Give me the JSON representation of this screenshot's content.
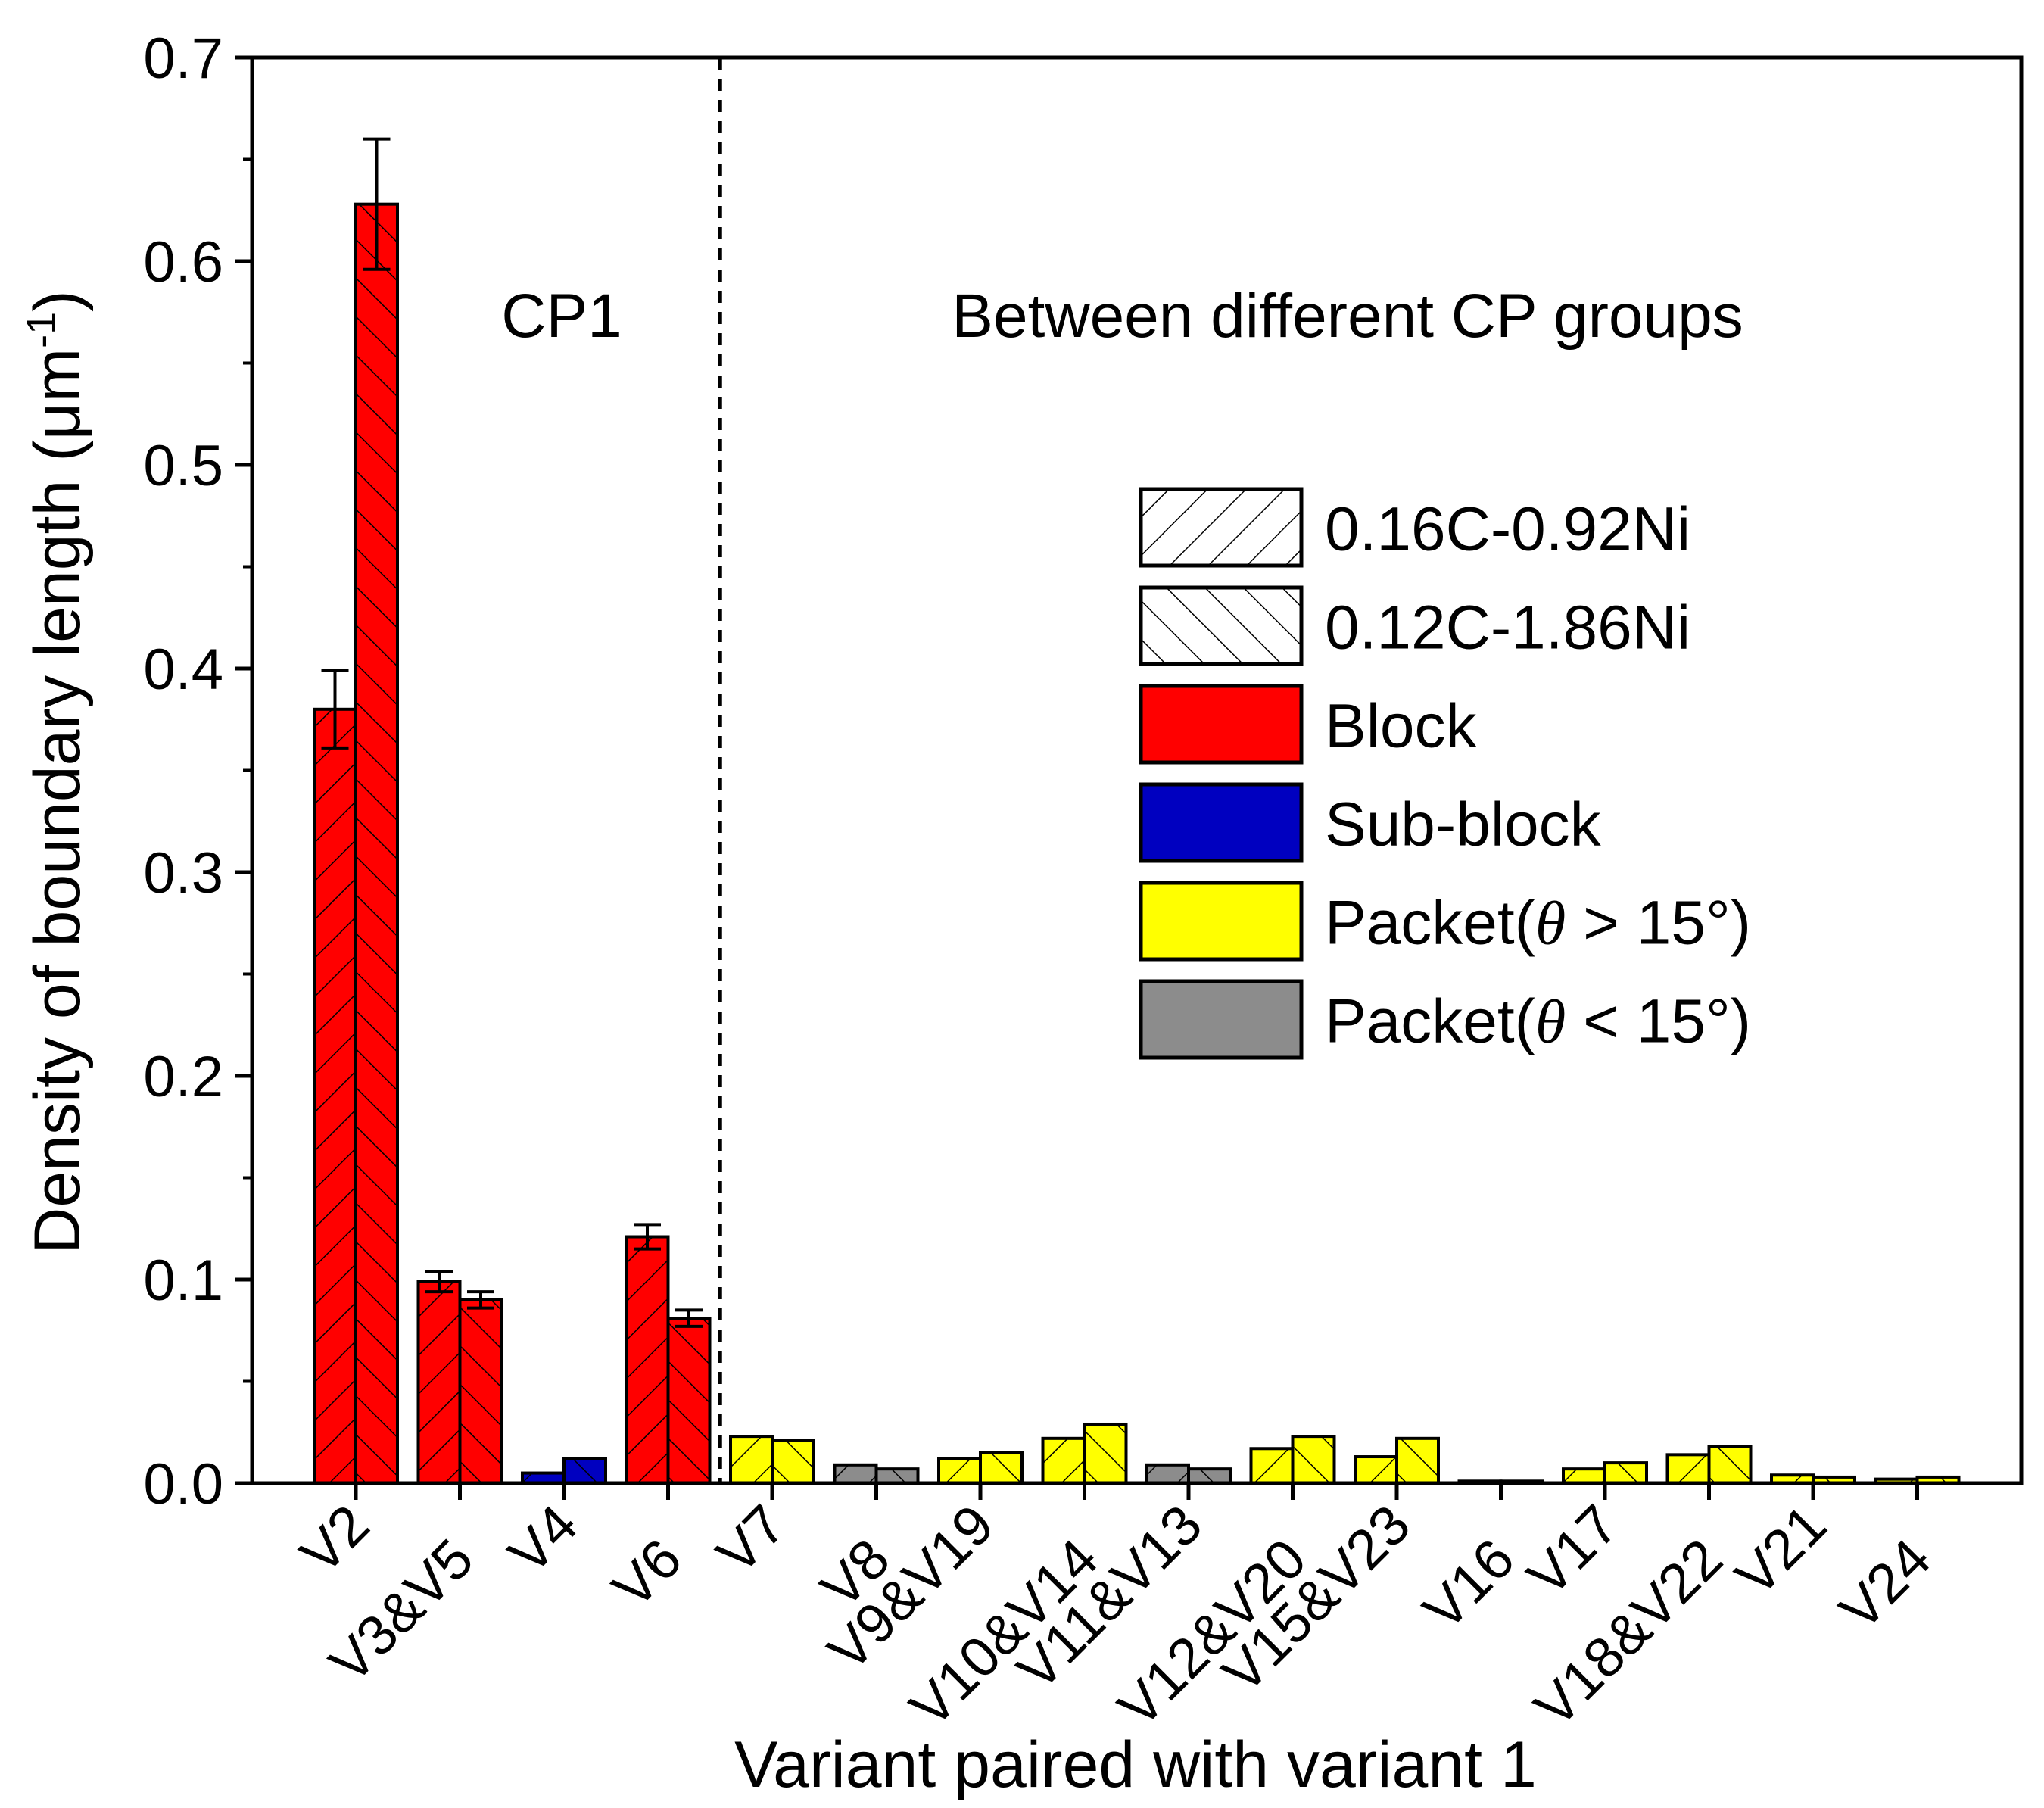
{
  "chart_data": {
    "type": "bar",
    "title": "",
    "xlabel": "Variant paired with variant 1",
    "ylabel_main": "Density of boundary length (",
    "ylabel_unit": "μm",
    "ylabel_sup": "-1",
    "ylabel_end": ")",
    "ylim": [
      0,
      0.7
    ],
    "yticks": [
      "0.0",
      "0.1",
      "0.2",
      "0.3",
      "0.4",
      "0.5",
      "0.6",
      "0.7"
    ],
    "categories": [
      "V2",
      "V3&V5",
      "V4",
      "V6",
      "V7",
      "V8",
      "V9&V19",
      "V10&V14",
      "V11&V13",
      "V12&V20",
      "V15&V23",
      "V16",
      "V17",
      "V18&V22",
      "V21",
      "V24"
    ],
    "category_type": [
      "block",
      "block",
      "sub-block",
      "block",
      "packet_gt15",
      "packet_lt15",
      "packet_gt15",
      "packet_gt15",
      "packet_lt15",
      "packet_gt15",
      "packet_gt15",
      "packet_lt15",
      "packet_gt15",
      "packet_gt15",
      "packet_gt15",
      "packet_gt15"
    ],
    "series": [
      {
        "name": "0.16C-0.92Ni",
        "hatch": "forward",
        "values": [
          0.38,
          0.099,
          0.005,
          0.121,
          0.023,
          0.009,
          0.012,
          0.022,
          0.009,
          0.017,
          0.013,
          0.001,
          0.007,
          0.014,
          0.004,
          0.002
        ],
        "errors": [
          0.019,
          0.005,
          0,
          0.006,
          0,
          0,
          0,
          0,
          0,
          0,
          0,
          0,
          0,
          0,
          0,
          0
        ]
      },
      {
        "name": "0.12C-1.86Ni",
        "hatch": "backward",
        "values": [
          0.628,
          0.09,
          0.012,
          0.081,
          0.021,
          0.007,
          0.015,
          0.029,
          0.007,
          0.023,
          0.022,
          0.001,
          0.01,
          0.018,
          0.003,
          0.003
        ],
        "errors": [
          0.032,
          0.004,
          0,
          0.004,
          0,
          0,
          0,
          0,
          0,
          0,
          0,
          0,
          0,
          0,
          0,
          0
        ]
      }
    ],
    "colors": {
      "block": "#ff0000",
      "sub-block": "#0000c0",
      "packet_gt15": "#ffff00",
      "packet_lt15": "#8c8c8c"
    },
    "divider_after_category": "V6",
    "annotations": [
      "CP1",
      "Between different CP groups"
    ],
    "legend": [
      {
        "label": "0.16C-0.92Ni",
        "fill": "#ffffff",
        "hatch": "forward"
      },
      {
        "label": "0.12C-1.86Ni",
        "fill": "#ffffff",
        "hatch": "backward"
      },
      {
        "label": "Block",
        "fill": "#ff0000",
        "hatch": "none"
      },
      {
        "label": "Sub-block",
        "fill": "#0000c0",
        "hatch": "none"
      },
      {
        "label": "Packet(θ > 15°)",
        "fill": "#ffff00",
        "hatch": "none",
        "theta": true,
        "prefix": "Packet(",
        "suffix": " > 15°)"
      },
      {
        "label": "Packet(θ < 15°)",
        "fill": "#8c8c8c",
        "hatch": "none",
        "theta": true,
        "prefix": "Packet(",
        "suffix": " < 15°)"
      }
    ]
  }
}
